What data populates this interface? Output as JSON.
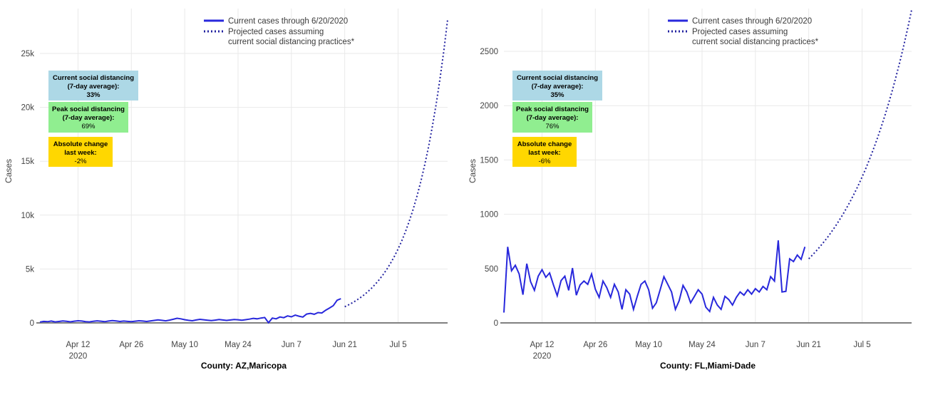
{
  "colors": {
    "current_line": "#2828dc",
    "projected_line": "#2323a0",
    "grid": "#e9e9e9",
    "axis_line": "#808080",
    "tick_text": "#444444",
    "box_blue": "#add8e6",
    "box_green": "#90ee90",
    "box_yellow": "#ffd700",
    "background": "#ffffff"
  },
  "legend": {
    "items": [
      {
        "style": "solid",
        "lines": [
          "Current cases through 6/20/2020"
        ]
      },
      {
        "style": "dotted",
        "lines": [
          "Projected cases assuming",
          "current social distancing practices*"
        ]
      }
    ]
  },
  "chart_data": [
    {
      "type": "line",
      "name": "az-maricopa",
      "title": "County: AZ,Maricopa",
      "ylabel": "Cases",
      "grid": true,
      "legend_position": "top-center",
      "ymax": 29430,
      "ylim": [
        0,
        29430
      ],
      "xlim_days": 107,
      "x_start_date": "Apr 2 2020",
      "yticks": [
        {
          "value": 0,
          "label": "0"
        },
        {
          "value": 5000,
          "label": "5k"
        },
        {
          "value": 10000,
          "label": "10k"
        },
        {
          "value": 15000,
          "label": "15k"
        },
        {
          "value": 20000,
          "label": "20k"
        },
        {
          "value": 25000,
          "label": "25k"
        }
      ],
      "xticks": [
        {
          "day": 10,
          "label": "Apr 12",
          "sublabel": "2020"
        },
        {
          "day": 24,
          "label": "Apr 26"
        },
        {
          "day": 38,
          "label": "May 10"
        },
        {
          "day": 52,
          "label": "May 24"
        },
        {
          "day": 66,
          "label": "Jun 7"
        },
        {
          "day": 80,
          "label": "Jun 21"
        },
        {
          "day": 94,
          "label": "Jul 5"
        }
      ],
      "annotations": [
        {
          "color_key": "box_blue",
          "lines": [
            "Current social distancing",
            "(7-day average):"
          ],
          "value": "33%",
          "value_bold": true
        },
        {
          "color_key": "box_green",
          "lines": [
            "Peak social distancing",
            "(7-day average):"
          ],
          "value": "69%",
          "value_bold": false
        },
        {
          "color_key": "box_yellow",
          "lines": [
            "Absolute change",
            "last week:"
          ],
          "value": "-2%",
          "value_bold": false
        }
      ],
      "series": [
        {
          "name": "Current cases through 6/20/2020",
          "style": "solid",
          "start_day": 0,
          "values": [
            80,
            140,
            110,
            170,
            90,
            130,
            180,
            150,
            100,
            160,
            200,
            170,
            120,
            90,
            150,
            190,
            160,
            110,
            170,
            210,
            180,
            130,
            170,
            140,
            110,
            160,
            200,
            170,
            130,
            180,
            230,
            280,
            240,
            190,
            260,
            340,
            430,
            380,
            300,
            240,
            200,
            270,
            330,
            290,
            250,
            210,
            260,
            310,
            270,
            230,
            270,
            320,
            290,
            250,
            300,
            350,
            420,
            380,
            450,
            500,
            20,
            450,
            380,
            550,
            480,
            650,
            560,
            720,
            620,
            540,
            820,
            880,
            800,
            960,
            920,
            1180,
            1380,
            1600,
            2100,
            2250
          ]
        },
        {
          "name": "Projected cases assuming current social distancing practices*",
          "style": "dotted",
          "start_day": 80,
          "values": [
            1500,
            1672,
            1864,
            2078,
            2316,
            2582,
            2878,
            3208,
            3576,
            3986,
            4443,
            4953,
            5521,
            6154,
            6860,
            7647,
            8524,
            9502,
            10591,
            11806,
            13160,
            14669,
            16351,
            18227,
            20317,
            22647,
            25244,
            28139
          ]
        }
      ]
    },
    {
      "type": "line",
      "name": "fl-miami-dade",
      "title": "County: FL,Miami-Dade",
      "ylabel": "Cases",
      "grid": true,
      "legend_position": "top-center",
      "ymax": 2920,
      "ylim": [
        0,
        2920
      ],
      "xlim_days": 107,
      "x_start_date": "Apr 2 2020",
      "yticks": [
        {
          "value": 0,
          "label": "0"
        },
        {
          "value": 500,
          "label": "500"
        },
        {
          "value": 1000,
          "label": "1000"
        },
        {
          "value": 1500,
          "label": "1500"
        },
        {
          "value": 2000,
          "label": "2000"
        },
        {
          "value": 2500,
          "label": "2500"
        }
      ],
      "xticks": [
        {
          "day": 10,
          "label": "Apr 12",
          "sublabel": "2020"
        },
        {
          "day": 24,
          "label": "Apr 26"
        },
        {
          "day": 38,
          "label": "May 10"
        },
        {
          "day": 52,
          "label": "May 24"
        },
        {
          "day": 66,
          "label": "Jun 7"
        },
        {
          "day": 80,
          "label": "Jun 21"
        },
        {
          "day": 94,
          "label": "Jul 5"
        }
      ],
      "annotations": [
        {
          "color_key": "box_blue",
          "lines": [
            "Current social distancing",
            "(7-day average):"
          ],
          "value": "35%",
          "value_bold": true
        },
        {
          "color_key": "box_green",
          "lines": [
            "Peak social distancing",
            "(7-day average):"
          ],
          "value": "76%",
          "value_bold": false
        },
        {
          "color_key": "box_yellow",
          "lines": [
            "Absolute change",
            "last week:"
          ],
          "value": "-6%",
          "value_bold": false
        }
      ],
      "series": [
        {
          "name": "Current cases through 6/20/2020",
          "style": "solid",
          "start_day": 0,
          "values": [
            95,
            700,
            480,
            530,
            450,
            260,
            545,
            380,
            300,
            430,
            490,
            420,
            460,
            350,
            250,
            390,
            430,
            300,
            505,
            255,
            350,
            385,
            355,
            450,
            310,
            235,
            385,
            325,
            235,
            355,
            285,
            125,
            305,
            265,
            125,
            245,
            355,
            385,
            305,
            135,
            185,
            305,
            425,
            355,
            285,
            125,
            205,
            345,
            285,
            185,
            245,
            305,
            265,
            145,
            105,
            235,
            165,
            125,
            245,
            215,
            165,
            235,
            285,
            255,
            305,
            265,
            315,
            285,
            335,
            305,
            425,
            385,
            760,
            285,
            290,
            590,
            565,
            625,
            585,
            700
          ]
        },
        {
          "name": "Projected cases assuming current social distancing practices*",
          "style": "dotted",
          "start_day": 80,
          "values": [
            590,
            626,
            664,
            704,
            746,
            791,
            839,
            890,
            944,
            1001,
            1062,
            1126,
            1194,
            1266,
            1343,
            1424,
            1510,
            1601,
            1698,
            1801,
            1910,
            2025,
            2148,
            2278,
            2416,
            2562,
            2717,
            2881
          ]
        }
      ]
    }
  ]
}
